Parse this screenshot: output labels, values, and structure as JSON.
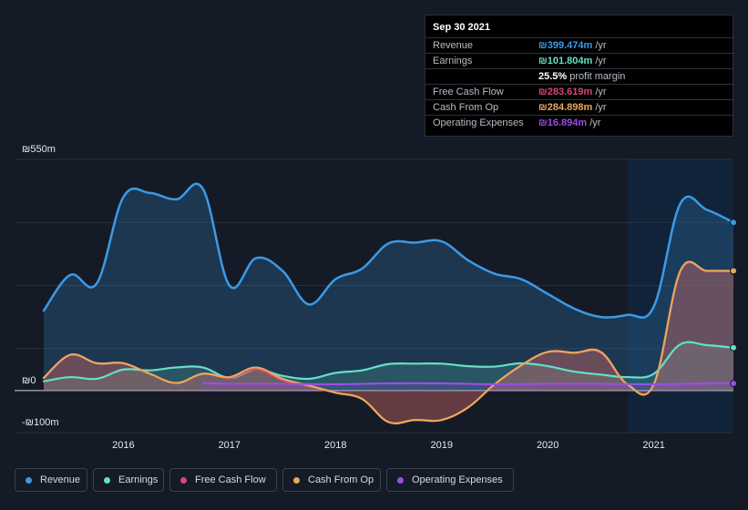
{
  "tooltip": {
    "date": "Sep 30 2021",
    "rows": [
      {
        "label": "Revenue",
        "value": "₪399.474m",
        "unit": "/yr",
        "color": "#3b9ae8"
      },
      {
        "label": "Earnings",
        "value": "₪101.804m",
        "unit": "/yr",
        "color": "#64e0c6"
      },
      {
        "label": "",
        "value": "25.5%",
        "unit": "profit margin",
        "color": "#ffffff"
      },
      {
        "label": "Free Cash Flow",
        "value": "₪283.619m",
        "unit": "/yr",
        "color": "#d6477a"
      },
      {
        "label": "Cash From Op",
        "value": "₪284.898m",
        "unit": "/yr",
        "color": "#e8a85a"
      },
      {
        "label": "Operating Expenses",
        "value": "₪16.894m",
        "unit": "/yr",
        "color": "#9b4de8"
      }
    ]
  },
  "legend": [
    {
      "label": "Revenue",
      "color": "#3b9ae8"
    },
    {
      "label": "Earnings",
      "color": "#64e0c6"
    },
    {
      "label": "Free Cash Flow",
      "color": "#d6477a"
    },
    {
      "label": "Cash From Op",
      "color": "#e8a85a"
    },
    {
      "label": "Operating Expenses",
      "color": "#9b4de8"
    }
  ],
  "chart_data": {
    "type": "area",
    "ylim": [
      -100,
      550
    ],
    "y_tick_labels": [
      {
        "value": 550,
        "label": "₪550m"
      },
      {
        "value": 0,
        "label": "₪0"
      },
      {
        "value": -100,
        "label": "-₪100m"
      }
    ],
    "x_tick_labels": [
      {
        "value": 2016.0,
        "label": "2016"
      },
      {
        "value": 2017.0,
        "label": "2017"
      },
      {
        "value": 2018.0,
        "label": "2018"
      },
      {
        "value": 2019.0,
        "label": "2019"
      },
      {
        "value": 2020.0,
        "label": "2020"
      },
      {
        "value": 2021.0,
        "label": "2021"
      }
    ],
    "xlim": [
      2015.25,
      2021.75
    ],
    "highlight_from": 2020.75,
    "series": [
      {
        "name": "Revenue",
        "color": "#3b9ae8",
        "x": [
          2015.25,
          2015.5,
          2015.75,
          2016.0,
          2016.25,
          2016.5,
          2016.75,
          2017.0,
          2017.25,
          2017.5,
          2017.75,
          2018.0,
          2018.25,
          2018.5,
          2018.75,
          2019.0,
          2019.25,
          2019.5,
          2019.75,
          2020.0,
          2020.25,
          2020.5,
          2020.75,
          2021.0,
          2021.25,
          2021.5,
          2021.75
        ],
        "values": [
          190,
          275,
          255,
          460,
          470,
          455,
          480,
          250,
          315,
          285,
          205,
          265,
          290,
          350,
          352,
          355,
          310,
          278,
          265,
          230,
          195,
          175,
          180,
          200,
          445,
          430,
          400
        ]
      },
      {
        "name": "Earnings",
        "color": "#64e0c6",
        "x": [
          2015.25,
          2015.5,
          2015.75,
          2016.0,
          2016.25,
          2016.5,
          2016.75,
          2017.0,
          2017.25,
          2017.5,
          2017.75,
          2018.0,
          2018.25,
          2018.5,
          2018.75,
          2019.0,
          2019.25,
          2019.5,
          2019.75,
          2020.0,
          2020.25,
          2020.5,
          2020.75,
          2021.0,
          2021.25,
          2021.5,
          2021.75
        ],
        "values": [
          22,
          32,
          28,
          50,
          48,
          55,
          55,
          30,
          50,
          35,
          28,
          42,
          48,
          63,
          64,
          64,
          58,
          57,
          65,
          58,
          45,
          38,
          32,
          40,
          110,
          108,
          102
        ]
      },
      {
        "name": "Free Cash Flow",
        "color": "#d6477a",
        "x": [
          2015.25,
          2015.5,
          2015.75,
          2016.0,
          2016.25,
          2016.5,
          2016.75,
          2017.0,
          2017.25,
          2017.5,
          2017.75,
          2018.0,
          2018.25,
          2018.5,
          2018.75,
          2019.0,
          2019.25,
          2019.5,
          2019.75,
          2020.0,
          2020.25,
          2020.5,
          2020.75,
          2021.0,
          2021.25,
          2021.5,
          2021.75
        ],
        "values": [
          30,
          85,
          65,
          65,
          40,
          18,
          40,
          30,
          50,
          25,
          10,
          -5,
          -20,
          -75,
          -70,
          -70,
          -40,
          15,
          60,
          92,
          90,
          90,
          15,
          15,
          283,
          284,
          283.6
        ]
      },
      {
        "name": "Cash From Op",
        "color": "#e8a85a",
        "x": [
          2015.25,
          2015.5,
          2015.75,
          2016.0,
          2016.25,
          2016.5,
          2016.75,
          2017.0,
          2017.25,
          2017.5,
          2017.75,
          2018.0,
          2018.25,
          2018.5,
          2018.75,
          2019.0,
          2019.25,
          2019.5,
          2019.75,
          2020.0,
          2020.25,
          2020.5,
          2020.75,
          2021.0,
          2021.25,
          2021.5,
          2021.75
        ],
        "values": [
          30,
          85,
          65,
          65,
          40,
          18,
          40,
          32,
          55,
          28,
          12,
          -5,
          -20,
          -75,
          -70,
          -70,
          -40,
          15,
          60,
          92,
          90,
          92,
          15,
          15,
          285,
          285,
          284.9
        ]
      },
      {
        "name": "Operating Expenses",
        "color": "#9b4de8",
        "x": [
          2016.75,
          2017.0,
          2017.5,
          2018.0,
          2018.5,
          2019.0,
          2019.5,
          2020.0,
          2020.5,
          2021.0,
          2021.5,
          2021.75
        ],
        "values": [
          18,
          16,
          16,
          15,
          17,
          17,
          15,
          16,
          16,
          15,
          17,
          16.9
        ]
      }
    ]
  }
}
